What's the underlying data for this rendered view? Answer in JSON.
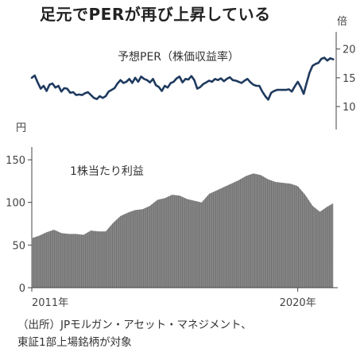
{
  "headline": "足元でPERが再び上昇している",
  "source": {
    "line1": "（出所）JPモルガン・アセット・マネジメント、",
    "line2": "東証1部上場銘柄が対象"
  },
  "chart_data": [
    {
      "type": "line",
      "title": "予想PER（株価収益率）",
      "unit_label": "倍",
      "yticks": [
        10,
        15,
        20
      ],
      "ylim": [
        6,
        23
      ],
      "xlim": [
        2011.0,
        2021.3
      ],
      "color": "#1f3a5f",
      "series": [
        {
          "x": [
            2011.0,
            2011.1,
            2011.2,
            2011.3,
            2011.4,
            2011.5,
            2011.6,
            2011.7,
            2011.8,
            2011.9,
            2012.0,
            2012.1,
            2012.2,
            2012.3,
            2012.4,
            2012.5,
            2012.6,
            2012.7,
            2012.8,
            2012.9,
            2013.0,
            2013.1,
            2013.2,
            2013.3,
            2013.4,
            2013.5,
            2013.6,
            2013.7,
            2013.8,
            2013.9,
            2014.0,
            2014.1,
            2014.2,
            2014.3,
            2014.4,
            2014.5,
            2014.6,
            2014.7,
            2014.8,
            2014.9,
            2015.0,
            2015.1,
            2015.2,
            2015.3,
            2015.4,
            2015.5,
            2015.6,
            2015.7,
            2015.8,
            2015.9,
            2016.0,
            2016.1,
            2016.2,
            2016.3,
            2016.4,
            2016.5,
            2016.6,
            2016.7,
            2016.8,
            2016.9,
            2017.0,
            2017.1,
            2017.2,
            2017.3,
            2017.4,
            2017.5,
            2017.6,
            2017.7,
            2017.8,
            2017.9,
            2018.0,
            2018.1,
            2018.2,
            2018.3,
            2018.4,
            2018.5,
            2018.6,
            2018.7,
            2018.8,
            2018.9,
            2019.0,
            2019.1,
            2019.2,
            2019.3,
            2019.4,
            2019.5,
            2019.6,
            2019.7,
            2019.8,
            2019.9,
            2020.0,
            2020.1,
            2020.2,
            2020.3,
            2020.4,
            2020.5,
            2020.6,
            2020.7,
            2020.8,
            2020.9,
            2021.0,
            2021.1,
            2021.2
          ],
          "y": [
            15.0,
            15.4,
            14.2,
            13.1,
            13.6,
            12.7,
            13.8,
            14.0,
            13.3,
            13.6,
            12.6,
            13.2,
            13.1,
            12.4,
            12.5,
            12.0,
            12.1,
            12.0,
            12.3,
            12.5,
            12.0,
            11.5,
            11.3,
            11.8,
            11.5,
            11.8,
            12.6,
            12.9,
            13.2,
            14.0,
            14.6,
            14.1,
            14.3,
            14.8,
            14.1,
            15.0,
            14.3,
            15.2,
            14.8,
            14.6,
            14.2,
            14.8,
            13.7,
            13.4,
            12.7,
            13.6,
            13.3,
            14.1,
            14.3,
            14.9,
            15.2,
            14.2,
            14.8,
            14.7,
            15.3,
            14.6,
            13.1,
            13.4,
            13.9,
            14.2,
            14.5,
            14.3,
            14.8,
            14.6,
            14.9,
            14.4,
            14.8,
            15.1,
            14.6,
            14.5,
            14.3,
            14.1,
            14.5,
            14.8,
            14.2,
            13.8,
            13.6,
            13.6,
            12.6,
            11.8,
            11.2,
            12.4,
            12.7,
            12.9,
            12.9,
            12.9,
            12.9,
            13.0,
            12.6,
            13.5,
            14.3,
            13.4,
            12.2,
            14.1,
            15.9,
            17.1,
            17.4,
            17.6,
            18.3,
            18.5,
            18.0,
            18.4,
            18.2
          ]
        }
      ]
    },
    {
      "type": "bar",
      "title": "1株当たり利益",
      "unit_label": "円",
      "yticks": [
        0,
        50,
        100,
        150
      ],
      "ylim": [
        0,
        165
      ],
      "xlim": [
        2011.0,
        2021.3
      ],
      "color": "#888888",
      "xticks": [
        "2011年",
        "2020年"
      ],
      "xtick_values": [
        2011.0,
        2020.0
      ],
      "series": [
        {
          "x": [
            2011.0,
            2011.25,
            2011.5,
            2011.75,
            2012.0,
            2012.25,
            2012.5,
            2012.75,
            2013.0,
            2013.25,
            2013.5,
            2013.75,
            2014.0,
            2014.25,
            2014.5,
            2014.75,
            2015.0,
            2015.25,
            2015.5,
            2015.75,
            2016.0,
            2016.25,
            2016.5,
            2016.75,
            2017.0,
            2017.25,
            2017.5,
            2017.75,
            2018.0,
            2018.25,
            2018.5,
            2018.75,
            2019.0,
            2019.25,
            2019.5,
            2019.75,
            2020.0,
            2020.25,
            2020.5,
            2020.75,
            2021.0,
            2021.2
          ],
          "y": [
            58,
            61,
            65,
            68,
            64,
            63,
            63,
            62,
            67,
            66,
            66,
            76,
            84,
            88,
            91,
            92,
            96,
            103,
            105,
            109,
            108,
            104,
            102,
            100,
            110,
            114,
            118,
            122,
            126,
            131,
            134,
            132,
            127,
            124,
            123,
            122,
            119,
            109,
            96,
            89,
            95,
            99
          ]
        }
      ]
    }
  ]
}
